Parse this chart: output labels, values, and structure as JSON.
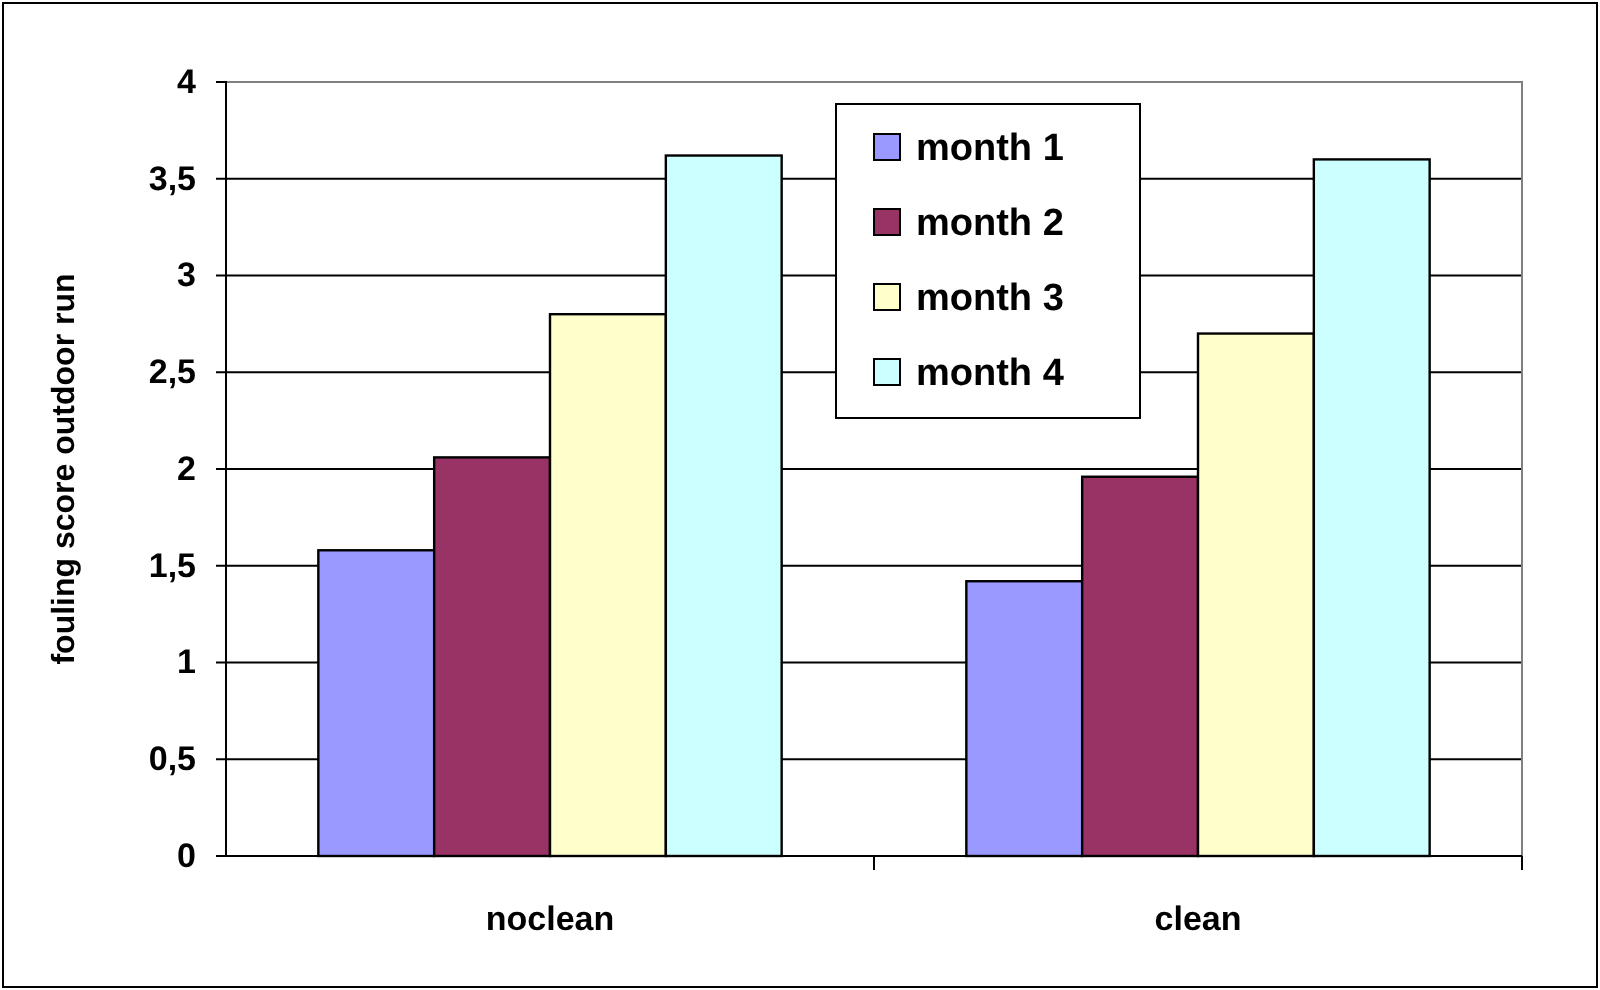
{
  "chart_data": {
    "type": "bar",
    "ylabel": "fouling score outdoor run",
    "categories": [
      "noclean",
      "clean"
    ],
    "series": [
      {
        "name": "month 1",
        "color": "#9999ff",
        "values": [
          1.58,
          1.42
        ]
      },
      {
        "name": "month 2",
        "color": "#993366",
        "values": [
          2.06,
          1.96
        ]
      },
      {
        "name": "month 3",
        "color": "#ffffcc",
        "values": [
          2.8,
          2.7
        ]
      },
      {
        "name": "month 4",
        "color": "#ccffff",
        "values": [
          3.62,
          3.6
        ]
      }
    ],
    "ylim": [
      0,
      4
    ],
    "yticks": [
      0,
      {
        "value": 0.5,
        "label": "0,5"
      },
      1,
      {
        "value": 1.5,
        "label": "1,5"
      },
      2,
      {
        "value": 2.5,
        "label": "2,5"
      },
      3,
      {
        "value": 3.5,
        "label": "3,5"
      },
      4
    ],
    "grid": "y",
    "legend": "top right"
  }
}
